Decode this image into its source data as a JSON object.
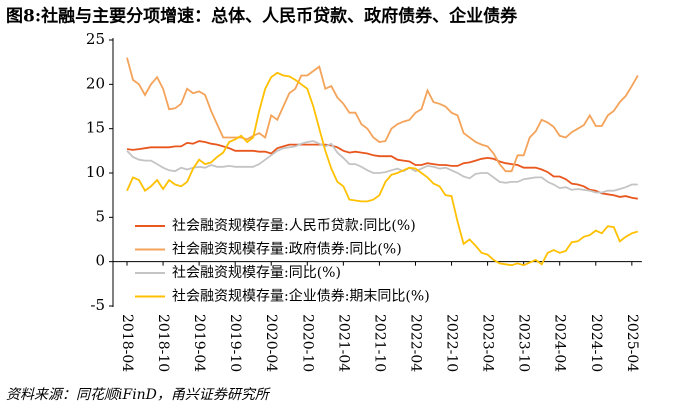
{
  "chart_data": {
    "type": "line",
    "title": "图8:社融与主要分项增速：总体、人民币贷款、政府债券、企业债券",
    "source": "资料来源：同花顺iFinD，甬兴证券研究所",
    "categories": [
      "2018-04",
      null,
      null,
      null,
      null,
      null,
      "2018-10",
      null,
      null,
      null,
      null,
      null,
      "2019-04",
      null,
      null,
      null,
      null,
      null,
      "2019-10",
      null,
      null,
      null,
      null,
      null,
      "2020-04",
      null,
      null,
      null,
      null,
      null,
      "2020-10",
      null,
      null,
      null,
      null,
      null,
      "2021-04",
      null,
      null,
      null,
      null,
      null,
      "2021-10",
      null,
      null,
      null,
      null,
      null,
      "2022-04",
      null,
      null,
      null,
      null,
      null,
      "2022-10",
      null,
      null,
      null,
      null,
      null,
      "2023-04",
      null,
      null,
      null,
      null,
      null,
      "2023-10",
      null,
      null,
      null,
      null,
      null,
      "2024-04",
      null,
      null,
      null,
      null,
      null,
      "2024-10",
      null,
      null,
      null,
      null,
      null,
      "2025-04",
      null
    ],
    "ylim": [
      -5,
      25
    ],
    "yticks": [
      -5,
      0,
      5,
      10,
      15,
      20,
      25
    ],
    "grid": false,
    "legend": "lower left",
    "series": [
      {
        "name": "社会融资规模存量:人民币贷款:同比(%)",
        "color": "#e8571e",
        "values": [
          12.7,
          12.6,
          12.7,
          12.8,
          12.9,
          12.9,
          12.9,
          12.9,
          13.0,
          13.0,
          13.4,
          13.3,
          13.6,
          13.5,
          13.3,
          13.2,
          13.0,
          12.8,
          12.5,
          12.5,
          12.5,
          12.5,
          12.4,
          12.4,
          12.2,
          12.8,
          13.0,
          13.2,
          13.2,
          13.2,
          13.2,
          13.2,
          13.2,
          13.2,
          13.1,
          12.9,
          12.5,
          12.3,
          12.4,
          12.3,
          12.2,
          12.0,
          11.9,
          11.9,
          11.9,
          11.5,
          11.4,
          11.3,
          10.9,
          10.9,
          11.1,
          11.0,
          10.9,
          10.9,
          10.8,
          10.8,
          11.1,
          11.2,
          11.4,
          11.6,
          11.7,
          11.6,
          11.3,
          11.1,
          11.0,
          10.9,
          10.6,
          10.6,
          10.6,
          10.4,
          10.1,
          9.6,
          9.6,
          9.3,
          8.8,
          8.7,
          8.5,
          8.1,
          8.0,
          7.7,
          7.6,
          7.5,
          7.3,
          7.4,
          7.2,
          7.1
        ]
      },
      {
        "name": "社会融资规模存量:政府债券:同比(%)",
        "color": "#f4a35a",
        "values": [
          23.0,
          20.5,
          20.0,
          18.8,
          20.0,
          20.8,
          19.5,
          17.2,
          17.3,
          17.8,
          19.5,
          19.0,
          19.2,
          18.8,
          17.0,
          15.5,
          14.0,
          14.0,
          14.0,
          14.0,
          13.8,
          14.2,
          14.5,
          14.0,
          16.5,
          16.0,
          17.5,
          19.0,
          19.5,
          21.0,
          21.0,
          21.5,
          22.0,
          19.5,
          19.8,
          18.5,
          17.8,
          16.8,
          16.8,
          15.5,
          15.0,
          14.0,
          13.5,
          13.6,
          15.0,
          15.5,
          15.8,
          16.0,
          16.8,
          17.2,
          19.3,
          18.0,
          17.8,
          17.5,
          16.8,
          16.5,
          14.5,
          14.0,
          13.5,
          13.2,
          13.0,
          12.2,
          11.0,
          10.2,
          10.2,
          12.0,
          12.0,
          14.0,
          14.7,
          16.0,
          15.7,
          15.2,
          14.2,
          14.0,
          14.6,
          15.0,
          15.4,
          16.5,
          15.3,
          15.3,
          16.5,
          17.0,
          18.0,
          18.7,
          19.8,
          21.0
        ]
      },
      {
        "name": "社会融资规模存量:同比(%)",
        "color": "#c4c4c4",
        "values": [
          12.5,
          11.8,
          11.5,
          11.4,
          11.4,
          11.0,
          10.6,
          10.3,
          10.2,
          10.6,
          10.4,
          10.6,
          10.7,
          10.6,
          10.9,
          10.7,
          10.7,
          10.8,
          10.7,
          10.7,
          10.7,
          10.7,
          11.0,
          11.5,
          12.0,
          12.5,
          12.8,
          12.9,
          13.0,
          13.3,
          13.5,
          13.6,
          13.3,
          13.0,
          13.3,
          12.3,
          11.7,
          11.0,
          11.0,
          10.7,
          10.3,
          10.0,
          10.0,
          10.1,
          10.3,
          10.5,
          10.2,
          10.6,
          10.2,
          10.5,
          10.8,
          10.7,
          10.5,
          10.6,
          10.3,
          10.0,
          9.6,
          9.4,
          9.9,
          10.0,
          10.0,
          9.5,
          9.0,
          8.9,
          9.0,
          9.0,
          9.3,
          9.4,
          9.5,
          9.5,
          9.0,
          8.7,
          8.3,
          8.4,
          8.1,
          8.2,
          8.1,
          8.0,
          7.8,
          7.8,
          8.0,
          8.0,
          8.2,
          8.4,
          8.7,
          8.7
        ]
      },
      {
        "name": "社会融资规模存量:企业债券:期末同比(%)",
        "color": "#ffc000",
        "values": [
          8.0,
          9.5,
          9.2,
          8.0,
          8.5,
          9.2,
          8.2,
          9.2,
          8.7,
          8.5,
          9.0,
          10.5,
          11.5,
          11.0,
          11.2,
          11.8,
          12.3,
          13.5,
          13.8,
          14.2,
          13.5,
          14.0,
          17.0,
          19.5,
          20.8,
          21.3,
          21.0,
          20.9,
          20.5,
          20.0,
          19.5,
          17.5,
          15.0,
          12.5,
          10.5,
          9.0,
          8.5,
          7.0,
          6.9,
          6.8,
          6.8,
          7.0,
          7.5,
          9.0,
          9.8,
          10.0,
          10.3,
          10.6,
          10.5,
          10.0,
          9.5,
          8.8,
          8.5,
          7.5,
          7.4,
          4.5,
          2.0,
          2.5,
          1.8,
          1.0,
          0.8,
          0.2,
          -0.2,
          -0.3,
          -0.4,
          -0.2,
          -0.4,
          -0.1,
          0.2,
          -0.3,
          1.0,
          1.3,
          1.0,
          1.2,
          2.2,
          2.3,
          2.8,
          3.0,
          3.5,
          3.2,
          4.0,
          3.9,
          2.3,
          2.8,
          3.2,
          3.4
        ]
      }
    ]
  }
}
